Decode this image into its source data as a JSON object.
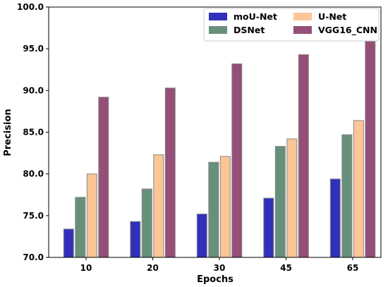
{
  "chart_data": {
    "type": "bar",
    "title": "",
    "xlabel": "Epochs",
    "ylabel": "Precision",
    "ylim": [
      70.0,
      100.0
    ],
    "yticks": [
      "70.0",
      "75.0",
      "80.0",
      "85.0",
      "90.0",
      "95.0",
      "100.0"
    ],
    "ytick_values": [
      70,
      75,
      80,
      85,
      90,
      95,
      100
    ],
    "categories": [
      "10",
      "20",
      "30",
      "45",
      "65"
    ],
    "grid": false,
    "legend_position": "top-right",
    "series": [
      {
        "name": "moU-Net",
        "color": "#3030bb",
        "values": [
          73.4,
          74.3,
          75.2,
          77.1,
          79.4
        ]
      },
      {
        "name": "DSNet",
        "color": "#67907a",
        "values": [
          77.2,
          78.2,
          81.4,
          83.3,
          84.7
        ]
      },
      {
        "name": "U-Net",
        "color": "#fcc595",
        "values": [
          80.0,
          82.3,
          82.1,
          84.2,
          86.4
        ]
      },
      {
        "name": "VGG16_CNN",
        "color": "#954e78",
        "values": [
          89.2,
          90.3,
          93.2,
          94.3,
          95.9
        ]
      }
    ],
    "bar_edge_color": "#888888"
  }
}
